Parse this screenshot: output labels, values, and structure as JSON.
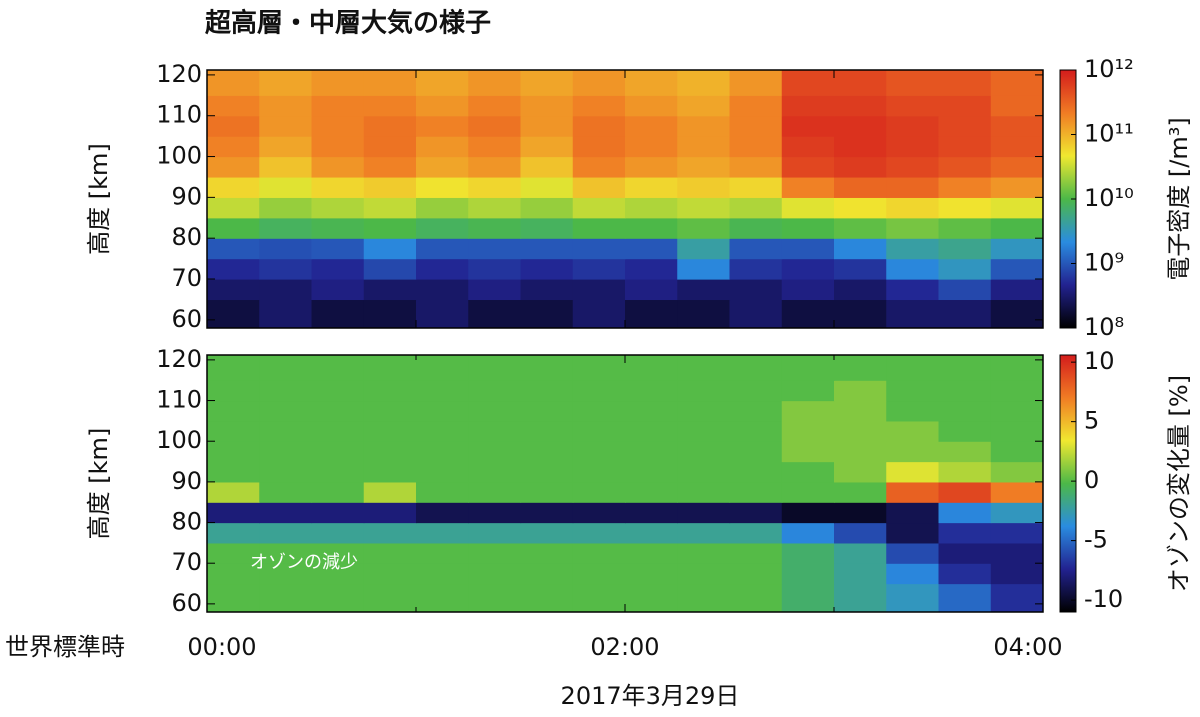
{
  "chart_data": [
    {
      "type": "heatmap",
      "title": "超高層・中層大気の様子",
      "ylabel": "高度 [km]",
      "xlim": [
        0,
        4
      ],
      "xticks": [
        0,
        1,
        2,
        3,
        4
      ],
      "ylim": [
        58,
        121.2
      ],
      "yticks": [
        60,
        70,
        80,
        90,
        100,
        110,
        120
      ],
      "xbins": [
        0,
        0.25,
        0.5,
        0.75,
        1,
        1.25,
        1.5,
        1.75,
        2,
        2.25,
        2.5,
        2.75,
        3,
        3.25,
        3.5,
        3.75,
        4
      ],
      "ybins": [
        58,
        65,
        70,
        75,
        80,
        85,
        90,
        95,
        100,
        105,
        110,
        115,
        122
      ],
      "values": [
        [
          200000000.0,
          300000000.0,
          200000000.0,
          200000000.0,
          300000000.0,
          200000000.0,
          200000000.0,
          300000000.0,
          200000000.0,
          200000000.0,
          300000000.0,
          200000000.0,
          200000000.0,
          300000000.0,
          300000000.0,
          200000000.0
        ],
        [
          300000000.0,
          300000000.0,
          400000000.0,
          300000000.0,
          300000000.0,
          400000000.0,
          300000000.0,
          300000000.0,
          400000000.0,
          300000000.0,
          300000000.0,
          400000000.0,
          300000000.0,
          500000000.0,
          800000000.0,
          400000000.0
        ],
        [
          500000000.0,
          600000000.0,
          500000000.0,
          800000000.0,
          500000000.0,
          600000000.0,
          500000000.0,
          600000000.0,
          500000000.0,
          2000000000.0,
          600000000.0,
          500000000.0,
          600000000.0,
          2000000000.0,
          3000000000.0,
          1000000000.0
        ],
        [
          1000000000.0,
          900000000.0,
          1000000000.0,
          2000000000.0,
          1000000000.0,
          1000000000.0,
          1000000000.0,
          1000000000.0,
          1000000000.0,
          4000000000.0,
          1000000000.0,
          1000000000.0,
          2000000000.0,
          4000000000.0,
          5000000000.0,
          3000000000.0
        ],
        [
          10000000000.0,
          8000000000.0,
          9000000000.0,
          10000000000.0,
          8000000000.0,
          9000000000.0,
          8000000000.0,
          10000000000.0,
          10000000000.0,
          12000000000.0,
          9000000000.0,
          10000000000.0,
          12000000000.0,
          15000000000.0,
          12000000000.0,
          10000000000.0
        ],
        [
          30000000000.0,
          20000000000.0,
          25000000000.0,
          30000000000.0,
          20000000000.0,
          25000000000.0,
          20000000000.0,
          30000000000.0,
          25000000000.0,
          30000000000.0,
          25000000000.0,
          40000000000.0,
          50000000000.0,
          60000000000.0,
          50000000000.0,
          40000000000.0
        ],
        [
          60000000000.0,
          40000000000.0,
          60000000000.0,
          70000000000.0,
          50000000000.0,
          60000000000.0,
          40000000000.0,
          80000000000.0,
          60000000000.0,
          70000000000.0,
          60000000000.0,
          200000000000.0,
          300000000000.0,
          300000000000.0,
          200000000000.0,
          150000000000.0
        ],
        [
          150000000000.0,
          80000000000.0,
          150000000000.0,
          200000000000.0,
          120000000000.0,
          150000000000.0,
          80000000000.0,
          200000000000.0,
          150000000000.0,
          120000000000.0,
          150000000000.0,
          500000000000.0,
          600000000000.0,
          500000000000.0,
          400000000000.0,
          300000000000.0
        ],
        [
          200000000000.0,
          120000000000.0,
          200000000000.0,
          250000000000.0,
          150000000000.0,
          200000000000.0,
          120000000000.0,
          250000000000.0,
          200000000000.0,
          150000000000.0,
          200000000000.0,
          600000000000.0,
          700000000000.0,
          600000000000.0,
          500000000000.0,
          400000000000.0
        ],
        [
          250000000000.0,
          150000000000.0,
          200000000000.0,
          250000000000.0,
          200000000000.0,
          250000000000.0,
          150000000000.0,
          250000000000.0,
          200000000000.0,
          150000000000.0,
          200000000000.0,
          700000000000.0,
          700000000000.0,
          600000000000.0,
          500000000000.0,
          400000000000.0
        ],
        [
          200000000000.0,
          150000000000.0,
          200000000000.0,
          200000000000.0,
          150000000000.0,
          200000000000.0,
          150000000000.0,
          200000000000.0,
          150000000000.0,
          120000000000.0,
          200000000000.0,
          600000000000.0,
          600000000000.0,
          500000000000.0,
          500000000000.0,
          300000000000.0
        ],
        [
          150000000000.0,
          120000000000.0,
          150000000000.0,
          150000000000.0,
          120000000000.0,
          150000000000.0,
          120000000000.0,
          150000000000.0,
          120000000000.0,
          100000000000.0,
          150000000000.0,
          500000000000.0,
          500000000000.0,
          400000000000.0,
          400000000000.0,
          300000000000.0
        ]
      ],
      "zscale": "log",
      "zlim": [
        100000000.0,
        1000000000000.0
      ],
      "zlabel": "電子密度 [/m³]",
      "zticks": [
        {
          "value": 100000000.0,
          "label": "10⁸"
        },
        {
          "value": 1000000000.0,
          "label": "10⁹"
        },
        {
          "value": 10000000000.0,
          "label": "10¹⁰"
        },
        {
          "value": 100000000000.0,
          "label": "10¹¹"
        },
        {
          "value": 1000000000000.0,
          "label": "10¹²"
        }
      ],
      "colormap": [
        "#000000",
        "#222290",
        "#2a8ce0",
        "#4cb848",
        "#f0e830",
        "#f07c24",
        "#d41c1c"
      ]
    },
    {
      "type": "heatmap",
      "ylabel": "高度 [km]",
      "xlabel": "2017年3月29日",
      "x_axis_title": "世界標準時",
      "annotation": "オゾンの減少",
      "xlim": [
        0,
        4
      ],
      "xticks": [
        {
          "value": 0,
          "label": "00:00"
        },
        {
          "value": 2,
          "label": "02:00"
        },
        {
          "value": 4,
          "label": "04:00"
        }
      ],
      "xminor": [
        1,
        3
      ],
      "ylim": [
        58,
        121.2
      ],
      "yticks": [
        60,
        70,
        80,
        90,
        100,
        110,
        120
      ],
      "xbins": [
        0,
        0.25,
        0.5,
        0.75,
        1,
        1.25,
        1.5,
        1.75,
        2,
        2.25,
        2.5,
        2.75,
        3,
        3.25,
        3.5,
        3.75,
        4
      ],
      "ybins": [
        58,
        65,
        70,
        75,
        80,
        85,
        90,
        95,
        100,
        105,
        110,
        115,
        122
      ],
      "values": [
        [
          0,
          0,
          0,
          0,
          0,
          0,
          0,
          0,
          0,
          0,
          0,
          -1,
          -2,
          -3,
          -5,
          -7
        ],
        [
          0,
          0,
          0,
          0,
          0,
          0,
          0,
          0,
          0,
          0,
          0,
          -1,
          -2,
          -4,
          -7,
          -8
        ],
        [
          0,
          0,
          0,
          0,
          0,
          0,
          0,
          0,
          0,
          0,
          0,
          -1,
          -2,
          -6,
          -8,
          -8
        ],
        [
          -2,
          -2,
          -2,
          -2,
          -2,
          -2,
          -2,
          -2,
          -2,
          -2,
          -2,
          -4,
          -6,
          -9,
          -7,
          -7
        ],
        [
          -8,
          -8,
          -8,
          -8,
          -9,
          -9,
          -9,
          -9,
          -9,
          -9,
          -9,
          -10,
          -10,
          -9,
          -4,
          -3
        ],
        [
          2,
          0,
          0,
          2,
          0,
          0,
          0,
          0,
          0,
          0,
          0,
          0,
          0,
          8,
          9,
          7
        ],
        [
          0,
          0,
          0,
          0,
          0,
          0,
          0,
          0,
          0,
          0,
          0,
          0,
          1,
          3,
          2,
          1
        ],
        [
          0,
          0,
          0,
          0,
          0,
          0,
          0,
          0,
          0,
          0,
          0,
          1,
          1,
          1,
          1,
          0
        ],
        [
          0,
          0,
          0,
          0,
          0,
          0,
          0,
          0,
          0,
          0,
          0,
          1,
          1,
          1,
          0,
          0
        ],
        [
          0,
          0,
          0,
          0,
          0,
          0,
          0,
          0,
          0,
          0,
          0,
          1,
          1,
          0,
          0,
          0
        ],
        [
          0,
          0,
          0,
          0,
          0,
          0,
          0,
          0,
          0,
          0,
          0,
          0,
          1,
          0,
          0,
          0
        ],
        [
          0,
          0,
          0,
          0,
          0,
          0,
          0,
          0,
          0,
          0,
          0,
          0,
          0,
          0,
          0,
          0
        ]
      ],
      "zscale": "linear",
      "zlim": [
        -11,
        10.6
      ],
      "zlabel": "オゾンの変化量 [%]",
      "zticks": [
        -10,
        -5,
        0,
        5,
        10
      ],
      "colormap": [
        "#000000",
        "#222290",
        "#2a8ce0",
        "#4cb848",
        "#f0e830",
        "#f07c24",
        "#d41c1c"
      ]
    }
  ]
}
